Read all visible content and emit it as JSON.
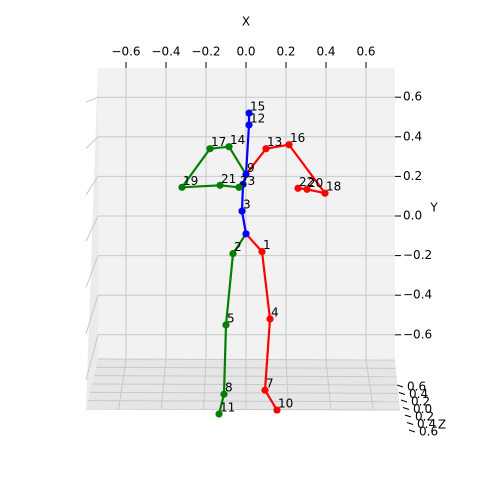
{
  "chart_data": {
    "type": "skeleton3d",
    "xlabel": "X",
    "ylabel": "Y",
    "zlabel": "Z",
    "xlim": [
      -0.7,
      0.7
    ],
    "ylim": [
      -0.7,
      0.7
    ],
    "xticks": [
      {
        "value": -0.6,
        "label": "−0.6"
      },
      {
        "value": -0.4,
        "label": "−0.4"
      },
      {
        "value": -0.2,
        "label": "−0.2"
      },
      {
        "value": 0,
        "label": "0.0"
      },
      0.2,
      0.4,
      0.6
    ],
    "yticks": [
      0.6,
      0.4,
      0.2,
      {
        "value": 0,
        "label": "0.0"
      },
      {
        "value": -0.2,
        "label": "−0.2"
      },
      {
        "value": -0.4,
        "label": "−0.4"
      },
      {
        "value": -0.6,
        "label": "−0.6"
      }
    ],
    "zticks": [
      {
        "value": -0.6,
        "label": "0.6"
      },
      {
        "value": -0.4,
        "label": "0.4"
      },
      {
        "value": -0.2,
        "label": "0.2"
      },
      {
        "value": 0,
        "label": "0.0"
      },
      0.2,
      0.4,
      0.6
    ],
    "grid": true,
    "joints": {
      "x": [
        0.0,
        0.08,
        -0.065,
        -0.02,
        0.12,
        -0.1,
        -0.015,
        0.095,
        -0.11,
        0.0,
        0.155,
        -0.135,
        0.015,
        0.1,
        -0.085,
        0.015,
        0.215,
        -0.18,
        0.395,
        -0.32,
        0.305,
        -0.13,
        0.26,
        -0.035
      ],
      "y": [
        -0.09,
        -0.18,
        -0.19,
        0.025,
        -0.52,
        -0.55,
        0.16,
        -0.88,
        -0.9,
        0.21,
        -0.98,
        -1.0,
        0.46,
        0.34,
        0.35,
        0.52,
        0.36,
        0.34,
        0.115,
        0.145,
        0.135,
        0.155,
        0.14,
        0.145
      ],
      "labels": [
        null,
        1,
        2,
        3,
        4,
        5,
        null,
        7,
        8,
        9,
        10,
        11,
        12,
        13,
        14,
        15,
        16,
        17,
        18,
        19,
        20,
        21,
        22,
        23
      ],
      "parents": [
        null,
        0,
        0,
        0,
        1,
        2,
        3,
        4,
        5,
        6,
        7,
        8,
        9,
        9,
        9,
        12,
        13,
        14,
        16,
        17,
        18,
        19,
        20,
        21
      ],
      "colors": [
        "blue",
        "red",
        "green",
        "blue",
        "red",
        "green",
        "blue",
        "red",
        "green",
        "blue",
        "red",
        "green",
        "blue",
        "red",
        "green",
        "blue",
        "red",
        "green",
        "red",
        "green",
        "red",
        "green",
        "red",
        "green"
      ]
    }
  }
}
